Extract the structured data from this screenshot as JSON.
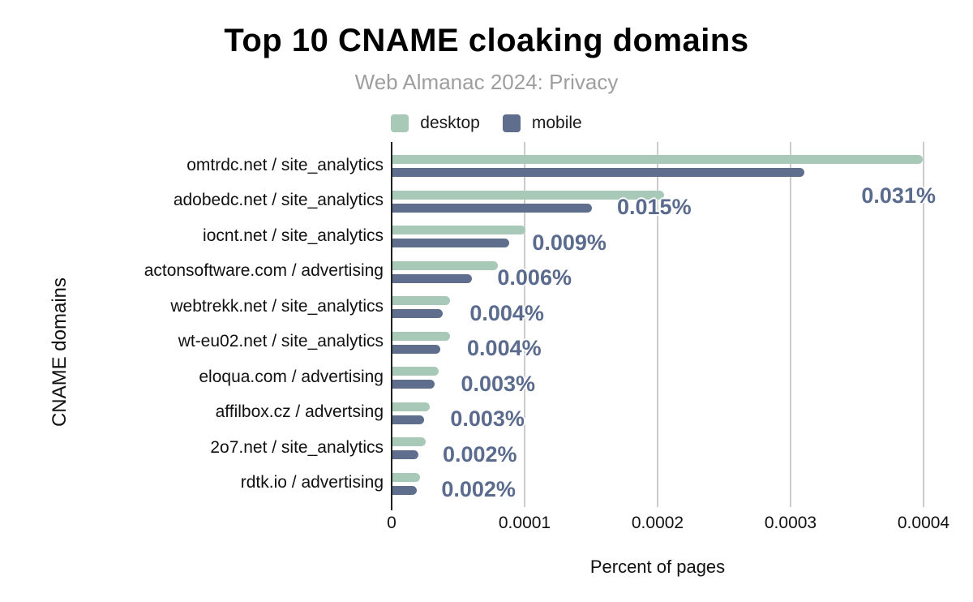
{
  "title": "Top 10 CNAME cloaking domains",
  "subtitle": "Web Almanac 2024: Privacy",
  "colors": {
    "desktop_bar": "#a8c9b8",
    "mobile_bar": "#5f6e8c",
    "annotation_text": "#5a6b8e",
    "subtitle_text": "#9e9e9e",
    "gridline": "#cccccc",
    "axis_line": "#212121"
  },
  "chart_data": {
    "type": "bar",
    "orientation": "horizontal",
    "title": "Top 10 CNAME cloaking domains",
    "subtitle": "Web Almanac 2024: Privacy",
    "xlabel": "Percent of pages",
    "ylabel": "CNAME domains",
    "xlim": [
      0,
      0.0004
    ],
    "xticks": [
      0,
      0.0001,
      0.0002,
      0.0003,
      0.0004
    ],
    "xtick_labels": [
      "0",
      "0.0001",
      "0.0002",
      "0.0003",
      "0.0004"
    ],
    "grid": true,
    "legend_position": "top",
    "categories": [
      "omtrdc.net / site_analytics",
      "adobedc.net / site_analytics",
      "iocnt.net / site_analytics",
      "actonsoftware.com / advertising",
      "webtrekk.net / site_analytics",
      "wt-eu02.net / site_analytics",
      "eloqua.com / advertising",
      "affilbox.cz / advertsing",
      "2o7.net / site_analytics",
      "rdtk.io / advertising"
    ],
    "series": [
      {
        "name": "desktop",
        "color": "#a8c9b8",
        "values": [
          0.000399,
          0.000204,
          0.0001,
          7.9e-05,
          4.3e-05,
          4.3e-05,
          3.5e-05,
          2.8e-05,
          2.5e-05,
          2.1e-05
        ]
      },
      {
        "name": "mobile",
        "color": "#5f6e8c",
        "values": [
          0.00031,
          0.00015,
          8.8e-05,
          6e-05,
          3.8e-05,
          3.6e-05,
          3.2e-05,
          2.4e-05,
          1.95e-05,
          1.85e-05
        ]
      }
    ],
    "annotations": {
      "series": "mobile",
      "labels": [
        "0.031%",
        "0.015%",
        "0.009%",
        "0.006%",
        "0.004%",
        "0.004%",
        "0.003%",
        "0.003%",
        "0.002%",
        "0.002%"
      ]
    }
  }
}
